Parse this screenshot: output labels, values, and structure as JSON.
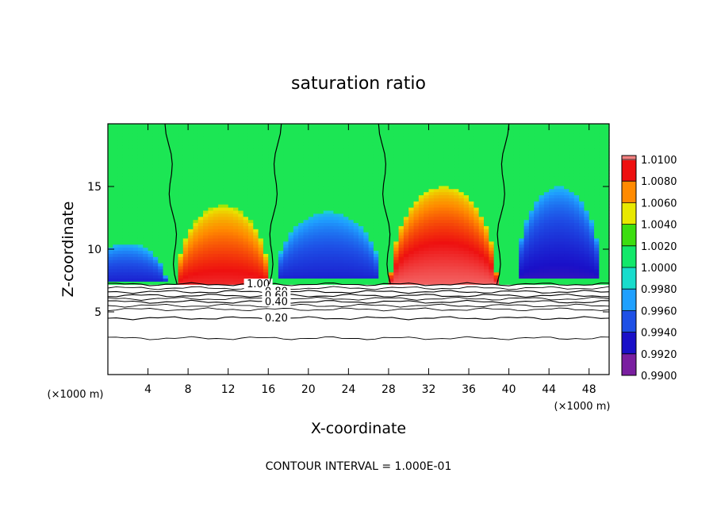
{
  "chart_data": {
    "type": "heatmap",
    "title": "saturation ratio",
    "xlabel": "X-coordinate",
    "ylabel": "Z-coordinate",
    "x_unit": "(×1000 m)",
    "y_unit": "(×1000 m)",
    "xlim": [
      0,
      50
    ],
    "ylim": [
      0,
      20
    ],
    "x_ticks": [
      4,
      8,
      12,
      16,
      20,
      24,
      28,
      32,
      36,
      40,
      44,
      48
    ],
    "y_ticks": [
      5,
      10,
      15
    ],
    "colorbar": {
      "levels": [
        "0.9900",
        "0.9920",
        "0.9940",
        "0.9960",
        "0.9980",
        "1.0000",
        "1.0020",
        "1.0040",
        "1.0060",
        "1.0080",
        "1.0100"
      ],
      "colors": [
        "#7a1fa0",
        "#1a10c8",
        "#1e50e6",
        "#1fa0ff",
        "#18dccc",
        "#12e86a",
        "#3cde10",
        "#e8e800",
        "#ff8a00",
        "#ee1010",
        "#f48080"
      ]
    },
    "warm_regions": [
      {
        "x_center": 11.5,
        "half_width": 4.6,
        "z_base": 7.2,
        "z_top": 13.5,
        "peak": 1.0085
      },
      {
        "x_center": 33.5,
        "half_width": 5.3,
        "z_base": 7.2,
        "z_top": 15.0,
        "peak": 1.0095
      }
    ],
    "cool_regions": [
      {
        "x_center": 22.0,
        "half_width": 5.2,
        "z_base": 7.6,
        "z_top": 13.0,
        "peak": 0.9925
      },
      {
        "x_center": 45.0,
        "half_width": 4.2,
        "z_base": 7.6,
        "z_top": 15.0,
        "peak": 0.9915
      },
      {
        "x_center": 1.8,
        "half_width": 4.0,
        "z_base": 7.4,
        "z_top": 10.5,
        "peak": 0.9925
      }
    ],
    "cloud_base_z": 7.2,
    "contour_lines": [
      {
        "label": "1.00",
        "z": 7.2
      },
      {
        "label": "0.80",
        "z": 6.6
      },
      {
        "label": "0.60",
        "z": 6.3
      },
      {
        "label": "0.40",
        "z": 5.8
      },
      {
        "label": "0.20",
        "z": 4.5
      }
    ],
    "contour_lines_unlabeled_z": [
      6.9,
      6.05,
      5.5,
      5.2,
      2.9
    ],
    "contour_interval_note": "CONTOUR INTERVAL = 1.000E-01"
  }
}
